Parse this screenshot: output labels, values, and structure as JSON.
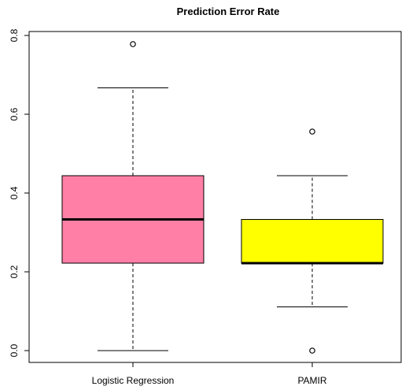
{
  "chart_data": {
    "type": "boxplot",
    "title": "Prediction Error Rate",
    "xlabel": "",
    "ylabel": "",
    "ylim": [
      -0.03,
      0.81
    ],
    "yticks": [
      0.0,
      0.2,
      0.4,
      0.6,
      0.8
    ],
    "ytick_labels": [
      "0.0",
      "0.2",
      "0.4",
      "0.6",
      "0.8"
    ],
    "categories": [
      "Logistic Regression",
      "PAMIR"
    ],
    "boxes": [
      {
        "label": "Logistic Regression",
        "color": "#ff7fa6",
        "whisker_low": 0.0,
        "q1": 0.222,
        "median": 0.333,
        "q3": 0.444,
        "whisker_high": 0.667,
        "outliers": [
          0.778
        ]
      },
      {
        "label": "PAMIR",
        "color": "#ffff00",
        "whisker_low": 0.111,
        "q1": 0.222,
        "median": 0.222,
        "q3": 0.333,
        "whisker_high": 0.444,
        "outliers": [
          0.0,
          0.556
        ]
      }
    ],
    "grid": false,
    "legend": "none"
  }
}
